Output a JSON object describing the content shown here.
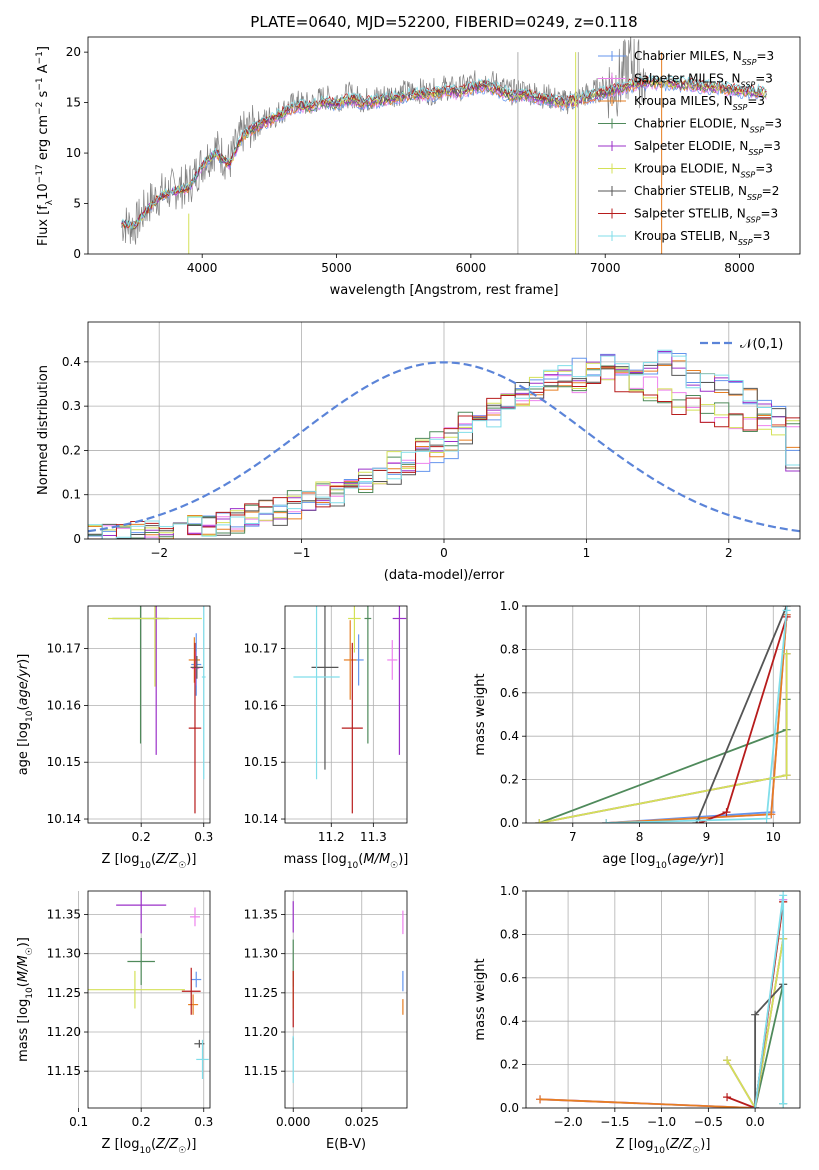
{
  "figure_title": "PLATE=0640, MJD=52200, FIBERID=0249, z=0.118",
  "models": [
    {
      "name": "Chabrier MILES",
      "nssp": "3",
      "color": "#6495ed"
    },
    {
      "name": "Salpeter MILES",
      "nssp": "3",
      "color": "#ee82ee"
    },
    {
      "name": "Kroupa MILES",
      "nssp": "3",
      "color": "#e67e22"
    },
    {
      "name": "Chabrier ELODIE",
      "nssp": "3",
      "color": "#4f8a5b"
    },
    {
      "name": "Salpeter ELODIE",
      "nssp": "3",
      "color": "#9b30c9"
    },
    {
      "name": "Kroupa ELODIE",
      "nssp": "3",
      "color": "#d4e157"
    },
    {
      "name": "Chabrier STELIB",
      "nssp": "2",
      "color": "#555555"
    },
    {
      "name": "Salpeter STELIB",
      "nssp": "3",
      "color": "#b71c1c"
    },
    {
      "name": "Kroupa STELIB",
      "nssp": "3",
      "color": "#80deea"
    }
  ],
  "chart_data": [
    {
      "id": "spectrum",
      "type": "line",
      "xlabel": "wavelength [Angstrom, rest frame]",
      "ylabel_parts": [
        "Flux [f",
        "λ",
        "10",
        "−17",
        " erg cm",
        "−2",
        " s",
        "−1",
        " A",
        "−1",
        "]"
      ],
      "xlim": [
        3150,
        8450
      ],
      "ylim": [
        0,
        21.5
      ],
      "xticks": [
        4000,
        5000,
        6000,
        7000,
        8000
      ],
      "yticks": [
        0,
        5,
        10,
        15,
        20
      ],
      "data_x": [
        3400,
        3500,
        3600,
        3700,
        3800,
        3900,
        4000,
        4100,
        4200,
        4300,
        4400,
        4500,
        4600,
        4700,
        4800,
        4900,
        5000,
        5100,
        5200,
        5300,
        5400,
        5500,
        5600,
        5700,
        5800,
        5900,
        6000,
        6100,
        6200,
        6300,
        6400,
        6500,
        6600,
        6700,
        6800,
        6900,
        7000,
        7100,
        7200,
        7300
      ],
      "data_y": [
        3.0,
        2.8,
        5.0,
        6.0,
        6.5,
        6.8,
        9.0,
        10.5,
        9.0,
        12.0,
        12.8,
        13.5,
        14.2,
        15.0,
        14.8,
        15.5,
        15.3,
        15.8,
        15.2,
        15.5,
        15.8,
        16.0,
        16.2,
        16.0,
        16.5,
        16.3,
        16.8,
        17.2,
        16.8,
        16.0,
        16.2,
        15.8,
        15.5,
        15.0,
        15.5,
        16.0,
        16.5,
        17.0,
        19.0,
        17.0
      ],
      "model_x": [
        3400,
        3500,
        3600,
        3700,
        3800,
        3900,
        4000,
        4100,
        4200,
        4300,
        4400,
        4500,
        4600,
        4700,
        4800,
        4900,
        5000,
        5100,
        5200,
        5300,
        5400,
        5500,
        5600,
        5700,
        5800,
        5900,
        6000,
        6100,
        6200,
        6300,
        6400,
        6500,
        6600,
        6700,
        6800,
        6900,
        7000,
        7100,
        7200,
        7300,
        7400,
        7500,
        7600,
        7700,
        7800,
        7900,
        8000,
        8100,
        8200
      ],
      "model_y": [
        3.0,
        2.8,
        4.5,
        5.8,
        6.2,
        6.5,
        8.7,
        10.0,
        8.8,
        11.6,
        12.5,
        13.2,
        13.9,
        14.6,
        14.5,
        15.0,
        14.8,
        15.3,
        14.9,
        15.1,
        15.3,
        15.6,
        15.8,
        15.7,
        16.1,
        15.9,
        16.3,
        16.6,
        16.2,
        15.6,
        15.8,
        15.4,
        15.2,
        14.9,
        15.2,
        15.6,
        15.9,
        16.3,
        16.7,
        16.9,
        16.9,
        16.8,
        16.7,
        16.6,
        16.4,
        16.3,
        16.1,
        16.0,
        15.9
      ]
    },
    {
      "id": "residuals",
      "type": "line",
      "xlabel": "(data-model)/error",
      "ylabel": "Normed distribution",
      "xlim": [
        -2.5,
        2.5
      ],
      "ylim": [
        0,
        0.49
      ],
      "xticks": [
        -2,
        -1,
        0,
        1,
        2
      ],
      "yticks": [
        0.0,
        0.1,
        0.2,
        0.3,
        0.4
      ],
      "gaussian_legend": "𝒩(0,1)",
      "gaussian_color": "#5b84d8",
      "hist_edges_start": -2.5,
      "hist_bin": 0.1,
      "hist_profiles": [
        [
          0.01,
          0.01,
          0.01,
          0.02,
          0.02,
          0.02,
          0.02,
          0.03,
          0.03,
          0.03,
          0.04,
          0.05,
          0.06,
          0.06,
          0.07,
          0.08,
          0.09,
          0.1,
          0.12,
          0.13,
          0.14,
          0.15,
          0.17,
          0.18,
          0.2,
          0.21,
          0.24,
          0.25,
          0.28,
          0.3,
          0.33,
          0.34,
          0.36,
          0.37,
          0.38,
          0.38,
          0.39,
          0.39,
          0.39,
          0.38,
          0.4,
          0.39,
          0.37,
          0.36,
          0.35,
          0.33,
          0.32,
          0.3,
          0.28,
          0.18
        ],
        [
          0.01,
          0.01,
          0.01,
          0.01,
          0.02,
          0.02,
          0.02,
          0.03,
          0.03,
          0.04,
          0.04,
          0.05,
          0.06,
          0.07,
          0.08,
          0.09,
          0.1,
          0.11,
          0.12,
          0.13,
          0.15,
          0.17,
          0.18,
          0.2,
          0.22,
          0.24,
          0.26,
          0.28,
          0.29,
          0.3,
          0.32,
          0.34,
          0.35,
          0.35,
          0.36,
          0.37,
          0.38,
          0.36,
          0.35,
          0.34,
          0.33,
          0.31,
          0.3,
          0.29,
          0.28,
          0.27,
          0.27,
          0.26,
          0.26,
          0.26
        ]
      ]
    },
    {
      "id": "age_vs_Z",
      "type": "scatter",
      "xlabel_parts": [
        "Z [log",
        "10",
        "(",
        "Z/Z",
        "☉",
        ")]"
      ],
      "ylabel_parts": [
        "age  [log",
        "10",
        "(",
        "age/yr",
        ")]"
      ],
      "xlim": [
        0.115,
        0.31
      ],
      "ylim": [
        10.1393,
        10.1775
      ],
      "xticks": [
        0.2,
        0.3
      ],
      "xticklabels": [
        "0.2",
        "0.3"
      ],
      "yticks": [
        10.14,
        10.15,
        10.16,
        10.17
      ],
      "yticklabels": [
        "10.14",
        "10.15",
        "10.16",
        "10.17"
      ],
      "points": [
        {
          "x": 0.288,
          "y": 10.1672,
          "xe": 0.008,
          "ye": 0.0055,
          "m": 0
        },
        {
          "x": 0.287,
          "y": 10.1665,
          "xe": 0.006,
          "ye": 0.003,
          "m": 1
        },
        {
          "x": 0.285,
          "y": 10.168,
          "xe": 0.009,
          "ye": 0.004,
          "m": 2
        },
        {
          "x": 0.199,
          "y": 10.1753,
          "xe": 0.045,
          "ye": 0.022,
          "m": 3
        },
        {
          "x": 0.224,
          "y": 10.1753,
          "xe": 0.005,
          "ye": 0.024,
          "m": 4
        },
        {
          "x": 0.222,
          "y": 10.1753,
          "xe": 0.075,
          "ye": 0.012,
          "m": 5
        },
        {
          "x": 0.289,
          "y": 10.1667,
          "xe": 0.01,
          "ye": 0.002,
          "m": 6
        },
        {
          "x": 0.286,
          "y": 10.156,
          "xe": 0.01,
          "ye": 0.015,
          "m": 7
        },
        {
          "x": 0.3,
          "y": 10.165,
          "xe": 0.003,
          "ye": 0.018,
          "m": 8
        }
      ]
    },
    {
      "id": "age_vs_mass",
      "type": "scatter",
      "xlabel_parts": [
        "mass [log",
        "10",
        "(",
        "M/M",
        "☉",
        ")]"
      ],
      "ylabel": "",
      "xlim": [
        11.09,
        11.38
      ],
      "ylim": [
        10.1393,
        10.1775
      ],
      "xticks": [
        11.2,
        11.3
      ],
      "xticklabels": [
        "11.2",
        "11.3"
      ],
      "yticks": [
        10.14,
        10.15,
        10.16,
        10.17
      ],
      "yticklabels": [
        "10.14",
        "10.15",
        "10.16",
        "10.17"
      ],
      "points": [
        {
          "x": 11.265,
          "y": 10.168,
          "xe": 0.012,
          "ye": 0.0045,
          "m": 0
        },
        {
          "x": 11.345,
          "y": 10.168,
          "xe": 0.012,
          "ye": 0.0035,
          "m": 1
        },
        {
          "x": 11.245,
          "y": 10.168,
          "xe": 0.015,
          "ye": 0.007,
          "m": 2
        },
        {
          "x": 11.287,
          "y": 10.1753,
          "xe": 0.008,
          "ye": 0.022,
          "m": 3
        },
        {
          "x": 11.362,
          "y": 10.1753,
          "xe": 0.016,
          "ye": 0.024,
          "m": 4
        },
        {
          "x": 11.255,
          "y": 10.1753,
          "xe": 0.015,
          "ye": 0.006,
          "m": 5
        },
        {
          "x": 11.185,
          "y": 10.1667,
          "xe": 0.032,
          "ye": 0.018,
          "m": 6
        },
        {
          "x": 11.25,
          "y": 10.156,
          "xe": 0.025,
          "ye": 0.015,
          "m": 7
        },
        {
          "x": 11.165,
          "y": 10.165,
          "xe": 0.055,
          "ye": 0.018,
          "m": 8
        }
      ]
    },
    {
      "id": "weight_vs_age",
      "type": "line",
      "xlabel_parts": [
        "age  [log",
        "10",
        "(",
        "age/yr",
        ")]"
      ],
      "ylabel": "mass weight",
      "xlim": [
        6.3,
        10.4
      ],
      "ylim": [
        0,
        1.0
      ],
      "xticks": [
        7,
        8,
        9,
        10
      ],
      "xticklabels": [
        "7",
        "8",
        "9",
        "10"
      ],
      "yticks": [
        0.0,
        0.2,
        0.4,
        0.6,
        0.8,
        1.0
      ],
      "yticklabels": [
        "0.0",
        "0.2",
        "0.4",
        "0.6",
        "0.8",
        "1.0"
      ],
      "series": [
        {
          "m": 0,
          "x": [
            7.5,
            9.97,
            10.2
          ],
          "y": [
            0.0,
            0.05,
            0.96
          ]
        },
        {
          "m": 1,
          "x": [
            7.5,
            9.97,
            10.2
          ],
          "y": [
            0.0,
            0.04,
            0.96
          ]
        },
        {
          "m": 2,
          "x": [
            7.5,
            9.97,
            10.2
          ],
          "y": [
            0.0,
            0.04,
            0.96
          ]
        },
        {
          "m": 3,
          "x": [
            6.5,
            10.2,
            10.2
          ],
          "y": [
            0.0,
            0.43,
            0.57
          ]
        },
        {
          "m": 4,
          "x": [
            6.5,
            10.2,
            10.2
          ],
          "y": [
            0.0,
            0.22,
            0.78
          ]
        },
        {
          "m": 5,
          "x": [
            6.5,
            10.2,
            10.2
          ],
          "y": [
            0.0,
            0.22,
            0.78
          ]
        },
        {
          "m": 6,
          "x": [
            8.85,
            10.2
          ],
          "y": [
            0.0,
            1.0
          ]
        },
        {
          "m": 7,
          "x": [
            8.9,
            9.3,
            10.2
          ],
          "y": [
            0.0,
            0.05,
            0.95
          ]
        },
        {
          "m": 8,
          "x": [
            7.5,
            9.9,
            10.2
          ],
          "y": [
            0.0,
            0.02,
            0.98
          ]
        }
      ]
    },
    {
      "id": "mass_vs_Z",
      "type": "scatter",
      "xlabel_parts": [
        "Z [log",
        "10",
        "(",
        "Z/Z",
        "☉",
        ")]"
      ],
      "ylabel_parts": [
        "mass [log",
        "10",
        "(",
        "M/M",
        "☉",
        ")]"
      ],
      "xlim": [
        0.115,
        0.31
      ],
      "ylim": [
        11.103,
        11.38
      ],
      "xticks": [
        0.1,
        0.2,
        0.3
      ],
      "xticklabels": [
        "0.1",
        "0.2",
        "0.3"
      ],
      "yticks": [
        11.15,
        11.2,
        11.25,
        11.3,
        11.35
      ],
      "yticklabels": [
        "11.15",
        "11.20",
        "11.25",
        "11.30",
        "11.35"
      ],
      "points": [
        {
          "x": 0.288,
          "y": 11.267,
          "xe": 0.008,
          "ye": 0.01,
          "m": 0
        },
        {
          "x": 0.286,
          "y": 11.347,
          "xe": 0.008,
          "ye": 0.012,
          "m": 1
        },
        {
          "x": 0.283,
          "y": 11.235,
          "xe": 0.008,
          "ye": 0.013,
          "m": 2
        },
        {
          "x": 0.2,
          "y": 11.29,
          "xe": 0.022,
          "ye": 0.03,
          "m": 3
        },
        {
          "x": 0.2,
          "y": 11.362,
          "xe": 0.04,
          "ye": 0.036,
          "m": 4
        },
        {
          "x": 0.19,
          "y": 11.254,
          "xe": 0.08,
          "ye": 0.024,
          "m": 5
        },
        {
          "x": 0.293,
          "y": 11.185,
          "xe": 0.008,
          "ye": 0.005,
          "m": 6
        },
        {
          "x": 0.28,
          "y": 11.252,
          "xe": 0.015,
          "ye": 0.03,
          "m": 7
        },
        {
          "x": 0.298,
          "y": 11.165,
          "xe": 0.01,
          "ye": 0.025,
          "m": 8
        }
      ]
    },
    {
      "id": "mass_vs_EBV",
      "type": "scatter",
      "xlabel": "E(B-V)",
      "ylabel": "",
      "xlim": [
        -0.003,
        0.0415
      ],
      "ylim": [
        11.103,
        11.38
      ],
      "xticks": [
        0.0,
        0.025
      ],
      "xticklabels": [
        "0.000",
        "0.025"
      ],
      "yticks": [
        11.15,
        11.2,
        11.25,
        11.3,
        11.35
      ],
      "yticklabels": [
        "11.15",
        "11.20",
        "11.25",
        "11.30",
        "11.35"
      ],
      "points": [
        {
          "x": 0.04,
          "y": 11.265,
          "xe": 0.0,
          "ye": 0.013,
          "m": 0
        },
        {
          "x": 0.04,
          "y": 11.34,
          "xe": 0.0,
          "ye": 0.015,
          "m": 1
        },
        {
          "x": 0.04,
          "y": 11.232,
          "xe": 0.0,
          "ye": 0.01,
          "m": 2
        },
        {
          "x": 0.0,
          "y": 11.288,
          "xe": 0.0,
          "ye": 0.03,
          "m": 3
        },
        {
          "x": 0.0,
          "y": 11.347,
          "xe": 0.0,
          "ye": 0.02,
          "m": 4
        },
        {
          "x": 0.0,
          "y": 11.254,
          "xe": 0.0,
          "ye": 0.024,
          "m": 5
        },
        {
          "x": 0.0,
          "y": 11.185,
          "xe": 0.0,
          "ye": 0.008,
          "m": 6
        },
        {
          "x": 0.0,
          "y": 11.242,
          "xe": 0.0,
          "ye": 0.036,
          "m": 7
        },
        {
          "x": 0.0,
          "y": 11.165,
          "xe": 0.0,
          "ye": 0.03,
          "m": 8
        }
      ]
    },
    {
      "id": "weight_vs_Z",
      "type": "line",
      "xlabel_parts": [
        "Z [log",
        "10",
        "(",
        "Z/Z",
        "☉",
        ")]"
      ],
      "ylabel": "mass weight",
      "xlim": [
        -2.45,
        0.48
      ],
      "ylim": [
        0,
        1.0
      ],
      "xticks": [
        -2.0,
        -1.5,
        -1.0,
        -0.5,
        0.0
      ],
      "xticklabels": [
        "−2.0",
        "−1.5",
        "−1.0",
        "−0.5",
        "0.0"
      ],
      "yticks": [
        0.0,
        0.2,
        0.4,
        0.6,
        0.8,
        1.0
      ],
      "yticklabels": [
        "0.0",
        "0.2",
        "0.4",
        "0.6",
        "0.8",
        "1.0"
      ],
      "series": [
        {
          "m": 0,
          "x": [
            -2.3,
            0.0,
            0.3
          ],
          "y": [
            0.04,
            0.0,
            0.96
          ]
        },
        {
          "m": 1,
          "x": [
            -2.3,
            0.0,
            0.3
          ],
          "y": [
            0.04,
            0.0,
            0.96
          ]
        },
        {
          "m": 2,
          "x": [
            -2.3,
            0.0,
            0.3
          ],
          "y": [
            0.04,
            0.0,
            0.95
          ]
        },
        {
          "m": 3,
          "x": [
            0.0,
            0.3,
            0.3
          ],
          "y": [
            0.0,
            0.57,
            0.02
          ]
        },
        {
          "m": 4,
          "x": [
            -0.3,
            0.0,
            0.3
          ],
          "y": [
            0.22,
            0.0,
            0.78
          ]
        },
        {
          "m": 5,
          "x": [
            -0.3,
            0.0,
            0.3
          ],
          "y": [
            0.22,
            0.0,
            0.78
          ]
        },
        {
          "m": 6,
          "x": [
            0.0,
            0.0,
            0.3
          ],
          "y": [
            0.0,
            0.43,
            0.57
          ]
        },
        {
          "m": 7,
          "x": [
            -0.3,
            0.0,
            0.3
          ],
          "y": [
            0.05,
            0.0,
            0.95
          ]
        },
        {
          "m": 8,
          "x": [
            0.0,
            0.3,
            0.3
          ],
          "y": [
            0.0,
            0.98,
            0.02
          ]
        }
      ]
    }
  ]
}
